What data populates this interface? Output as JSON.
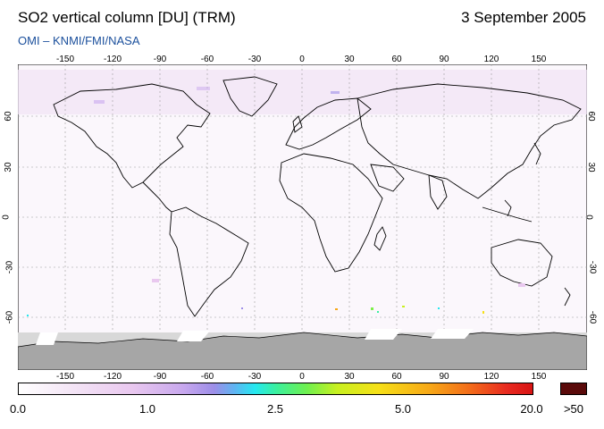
{
  "header": {
    "title": "SO2 vertical column [DU] (TRM)",
    "date": "3 September 2005",
    "subtitle": "OMI  –  KNMI/FMI/NASA"
  },
  "axes": {
    "lon_ticks": [
      "-150",
      "-120",
      "-90",
      "-60",
      "-30",
      "0",
      "30",
      "60",
      "90",
      "120",
      "150"
    ],
    "lat_ticks": [
      "60",
      "30",
      "0",
      "-30",
      "-60"
    ]
  },
  "colorbar": {
    "labels": [
      "0.0",
      "1.0",
      "2.5",
      "5.0",
      "20.0"
    ],
    "overflow_label": ">50",
    "colors": {
      "low": "#ffffff",
      "mid": "#25e8f0",
      "high": "#d81414",
      "overflow": "#5a0a0a"
    }
  },
  "map": {
    "land_no_data": "#a6a6a6",
    "polar_band": "#d8d8d8"
  }
}
